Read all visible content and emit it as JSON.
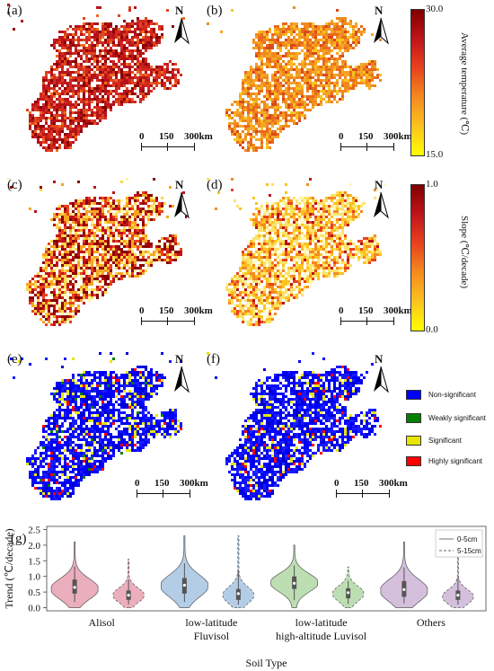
{
  "maps": {
    "panels": [
      {
        "id": "a",
        "label": "(a)"
      },
      {
        "id": "b",
        "label": "(b)"
      },
      {
        "id": "c",
        "label": "(c)"
      },
      {
        "id": "d",
        "label": "(d)"
      },
      {
        "id": "e",
        "label": "(e)"
      },
      {
        "id": "f",
        "label": "(f)"
      }
    ],
    "north_label": "N",
    "scale": {
      "t0": "0",
      "t1": "150",
      "t2": "300km"
    }
  },
  "colorbars": {
    "temperature": {
      "title": "Average temperature (℃)",
      "max": "30.0",
      "min": "15.0",
      "top_color": "#8b0000",
      "bottom_color": "#ffff00"
    },
    "slope": {
      "title": "Slope (℃/decade)",
      "max": "1.0",
      "min": "0.0",
      "top_color": "#8b0000",
      "bottom_color": "#ffff00"
    }
  },
  "legend": {
    "items": [
      {
        "label": "Non-significant",
        "color": "#0000ff"
      },
      {
        "label": "Weakly significant",
        "color": "#008000"
      },
      {
        "label": "Significant",
        "color": "#e6e600"
      },
      {
        "label": "Highly significant",
        "color": "#ff0000"
      }
    ]
  },
  "chart_data": {
    "type": "violin",
    "panel_label": "(g)",
    "ylabel": "Trend (℃/decade)",
    "xlabel": "Soil Type",
    "ylim": [
      -0.1,
      2.6
    ],
    "yticks": [
      "0.0",
      "0.5",
      "1.0",
      "1.5",
      "2.0",
      "2.5"
    ],
    "categories": [
      {
        "line1": "Alisol",
        "line2": ""
      },
      {
        "line1": "low-latitude",
        "line2": "Fluvisol"
      },
      {
        "line1": "low-latitude",
        "line2": "high-altitude Luvisol"
      },
      {
        "line1": "Others",
        "line2": ""
      }
    ],
    "legend": [
      {
        "name": "0-5cm",
        "style": "solid"
      },
      {
        "name": "5-15cm",
        "style": "dashed"
      }
    ],
    "colors": [
      "#e8a0b0",
      "#a7c4e2",
      "#b1d8a4",
      "#cdb4d6"
    ],
    "series": [
      {
        "name": "0-5cm",
        "stats": [
          {
            "min": 0.0,
            "q1": 0.45,
            "median": 0.65,
            "q3": 0.9,
            "max": 2.1,
            "mode": 0.6
          },
          {
            "min": 0.0,
            "q1": 0.45,
            "median": 0.72,
            "q3": 0.95,
            "max": 2.3,
            "mode": 0.7
          },
          {
            "min": 0.0,
            "q1": 0.6,
            "median": 0.78,
            "q3": 1.0,
            "max": 2.0,
            "mode": 0.8
          },
          {
            "min": 0.0,
            "q1": 0.35,
            "median": 0.58,
            "q3": 0.85,
            "max": 2.1,
            "mode": 0.55
          }
        ]
      },
      {
        "name": "5-15cm",
        "stats": [
          {
            "min": 0.0,
            "q1": 0.25,
            "median": 0.4,
            "q3": 0.55,
            "max": 1.55,
            "mode": 0.4
          },
          {
            "min": 0.0,
            "q1": 0.25,
            "median": 0.45,
            "q3": 0.6,
            "max": 2.3,
            "mode": 0.4
          },
          {
            "min": 0.0,
            "q1": 0.3,
            "median": 0.48,
            "q3": 0.62,
            "max": 1.3,
            "mode": 0.45
          },
          {
            "min": 0.0,
            "q1": 0.25,
            "median": 0.4,
            "q3": 0.55,
            "max": 1.7,
            "mode": 0.35
          }
        ]
      }
    ]
  }
}
